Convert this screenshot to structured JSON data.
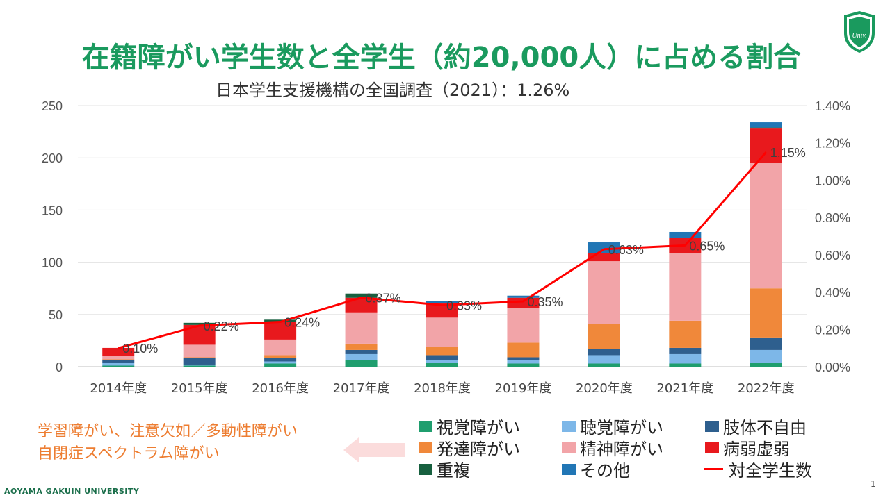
{
  "title": "在籍障がい学生数と全学生（約20,000人）に占める割合",
  "subtitle": "日本学生支援機構の全国調査（2021）：1.26%",
  "logo_text": "Univ.",
  "note_lines": [
    "学習障がい、注意欠如／多動性障がい",
    "自閉症スペクトラム障がい"
  ],
  "footer": "AOYAMA GAKUIN UNIVERSITY",
  "page_number": "1",
  "colors": {
    "title": "#1a9a5e",
    "note": "#ed7d31",
    "arrow": "#fbdcdc",
    "visual": "#1f9e6e",
    "hearing": "#7db7e8",
    "physical": "#2e5f8e",
    "developmental": "#f0883a",
    "mental": "#f2a4a8",
    "illness": "#e8191d",
    "multiple": "#17603f",
    "other": "#2176b5",
    "ratio": "#ff0000"
  },
  "chart_data": {
    "type": "bar",
    "stacked": true,
    "categories": [
      "2014年度",
      "2015年度",
      "2016年度",
      "2017年度",
      "2018年度",
      "2019年度",
      "2020年度",
      "2021年度",
      "2022年度"
    ],
    "y_ticks": [
      "0",
      "50",
      "100",
      "150",
      "200",
      "250"
    ],
    "y2_ticks": [
      "0.00%",
      "0.20%",
      "0.40%",
      "0.60%",
      "0.80%",
      "1.00%",
      "1.20%",
      "1.40%"
    ],
    "ylim": [
      0,
      250
    ],
    "y2lim": [
      0,
      1.4
    ],
    "grid": true,
    "legend_position": "bottom",
    "series": [
      {
        "name": "視覚障がい",
        "color_key": "visual",
        "values": [
          1,
          1,
          3,
          6,
          4,
          3,
          3,
          3,
          4
        ]
      },
      {
        "name": "聴覚障がい",
        "color_key": "hearing",
        "values": [
          3,
          1,
          2,
          6,
          2,
          3,
          8,
          9,
          12
        ]
      },
      {
        "name": "肢体不自由",
        "color_key": "physical",
        "values": [
          2,
          6,
          3,
          4,
          5,
          3,
          6,
          6,
          12
        ]
      },
      {
        "name": "発達障がい",
        "color_key": "developmental",
        "values": [
          1,
          1,
          3,
          6,
          8,
          14,
          24,
          26,
          47
        ]
      },
      {
        "name": "精神障がい",
        "color_key": "mental",
        "values": [
          3,
          12,
          15,
          30,
          28,
          33,
          60,
          65,
          120
        ]
      },
      {
        "name": "病弱虚弱",
        "color_key": "illness",
        "values": [
          8,
          19,
          17,
          14,
          14,
          10,
          8,
          14,
          33
        ]
      },
      {
        "name": "重複",
        "color_key": "multiple",
        "values": [
          0,
          2,
          2,
          4,
          0,
          0,
          0,
          0,
          1
        ]
      },
      {
        "name": "その他",
        "color_key": "other",
        "values": [
          0,
          0,
          0,
          0,
          2,
          2,
          10,
          6,
          5
        ]
      }
    ],
    "line_series": {
      "name": "対全学生数",
      "color_key": "ratio",
      "axis": "right",
      "values": [
        0.1,
        0.22,
        0.24,
        0.37,
        0.33,
        0.35,
        0.63,
        0.65,
        1.15
      ],
      "labels": [
        "0.10%",
        "0.22%",
        "0.24%",
        "0.37%",
        "0.33%",
        "0.35%",
        "0.63%",
        "0.65%",
        "1.15%"
      ]
    }
  }
}
